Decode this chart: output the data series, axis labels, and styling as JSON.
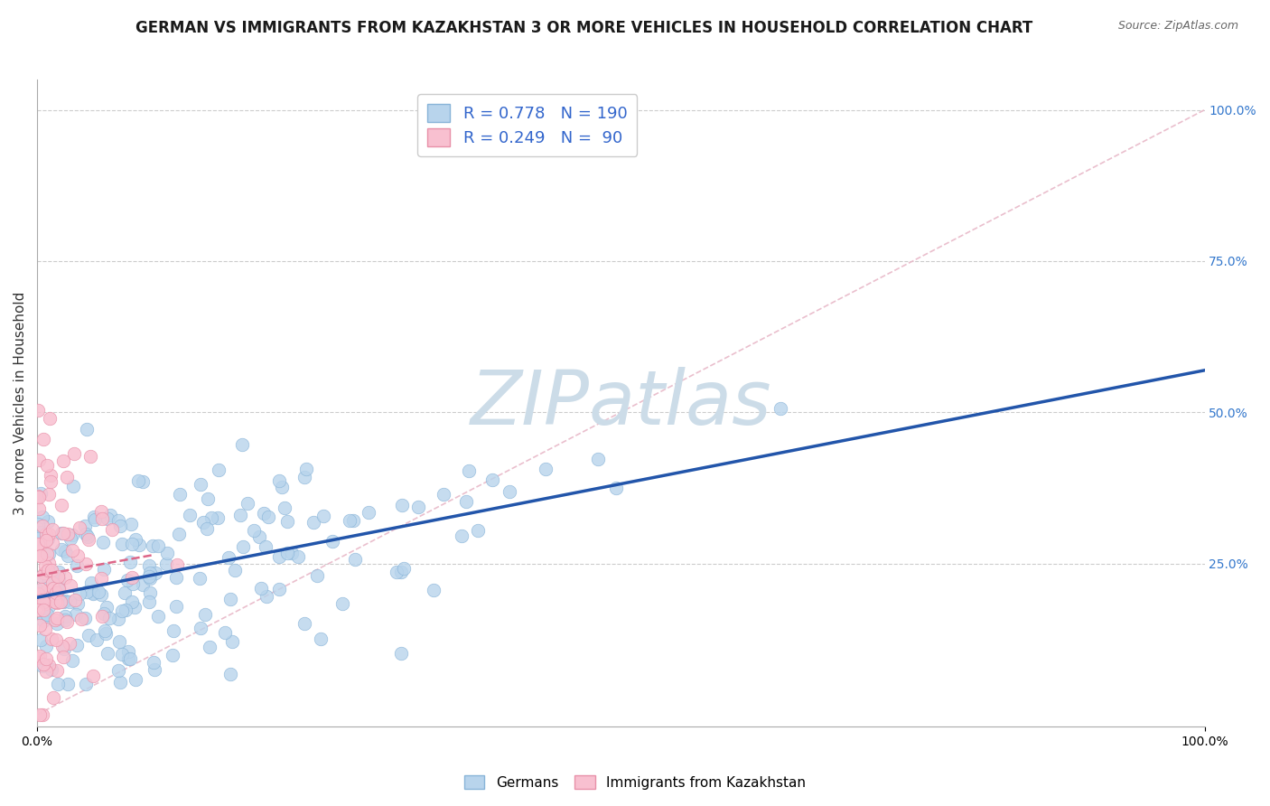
{
  "title": "GERMAN VS IMMIGRANTS FROM KAZAKHSTAN 3 OR MORE VEHICLES IN HOUSEHOLD CORRELATION CHART",
  "source_text": "Source: ZipAtlas.com",
  "ylabel": "3 or more Vehicles in Household",
  "xlim": [
    0.0,
    1.0
  ],
  "ylim": [
    -0.02,
    1.05
  ],
  "ytick_labels": [
    "25.0%",
    "50.0%",
    "75.0%",
    "100.0%"
  ],
  "ytick_positions": [
    0.25,
    0.5,
    0.75,
    1.0
  ],
  "legend_labels": [
    "Germans",
    "Immigrants from Kazakhstan"
  ],
  "watermark": "ZIPatlas",
  "watermark_color": "#ccdce8",
  "title_fontsize": 12,
  "axis_label_fontsize": 11,
  "tick_fontsize": 10,
  "background_color": "#ffffff",
  "plot_background": "#ffffff",
  "grid_color": "#cccccc",
  "blue_color": "#b8d4ec",
  "blue_edge": "#88b4d8",
  "pink_color": "#f8c0d0",
  "pink_edge": "#e890a8",
  "blue_line_color": "#2255aa",
  "pink_line_color": "#dd6688",
  "diag_line_color": "#e8b8c8",
  "R_blue": 0.778,
  "N_blue": 190,
  "R_pink": 0.249,
  "N_pink": 90
}
